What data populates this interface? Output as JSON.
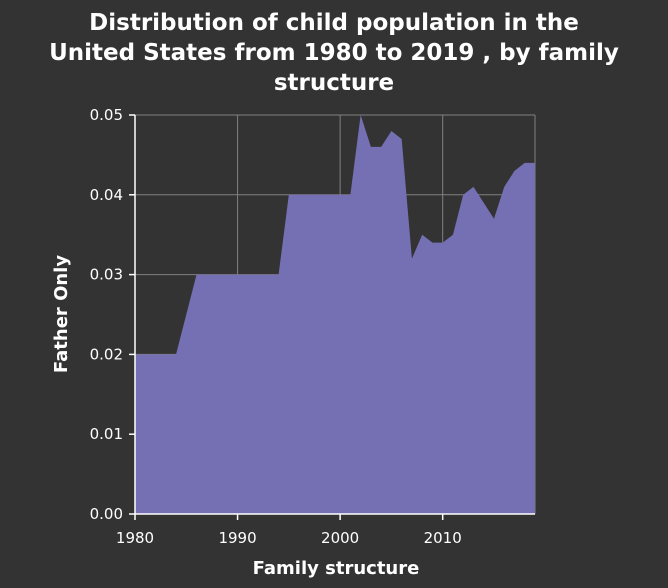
{
  "chart_data": {
    "type": "area",
    "title_lines": [
      "Distribution of child population in the",
      "United States from 1980 to 2019 , by family",
      "structure"
    ],
    "xlabel": "Family structure",
    "ylabel": "Father Only",
    "xlim": [
      1980,
      2019
    ],
    "ylim": [
      0,
      0.05
    ],
    "x_ticks": [
      1980,
      1990,
      2000,
      2010
    ],
    "x_tick_labels": [
      "1980",
      "1990",
      "2000",
      "2010"
    ],
    "y_ticks": [
      0,
      0.01,
      0.02,
      0.03,
      0.04,
      0.05
    ],
    "y_tick_labels": [
      "0.00",
      "0.01",
      "0.02",
      "0.03",
      "0.04",
      "0.05"
    ],
    "grid": true,
    "colors": {
      "background": "#333333",
      "fill": "#7570b3",
      "grid": "#808080",
      "text": "#ffffff"
    },
    "series": [
      {
        "x": [
          1980,
          1981,
          1982,
          1983,
          1984,
          1985,
          1986,
          1987,
          1988,
          1989,
          1990,
          1991,
          1992,
          1993,
          1994,
          1995,
          1996,
          1997,
          1998,
          1999,
          2000,
          2001,
          2002,
          2003,
          2004,
          2005,
          2006,
          2007,
          2008,
          2009,
          2010,
          2011,
          2012,
          2013,
          2014,
          2015,
          2016,
          2017,
          2018,
          2019
        ],
        "values": [
          0.02,
          0.02,
          0.02,
          0.02,
          0.02,
          0.025,
          0.03,
          0.03,
          0.03,
          0.03,
          0.03,
          0.03,
          0.03,
          0.03,
          0.03,
          0.04,
          0.04,
          0.04,
          0.04,
          0.04,
          0.04,
          0.04,
          0.05,
          0.046,
          0.046,
          0.048,
          0.047,
          0.032,
          0.035,
          0.034,
          0.034,
          0.035,
          0.04,
          0.041,
          0.039,
          0.037,
          0.041,
          0.043,
          0.044,
          0.044
        ]
      }
    ]
  }
}
